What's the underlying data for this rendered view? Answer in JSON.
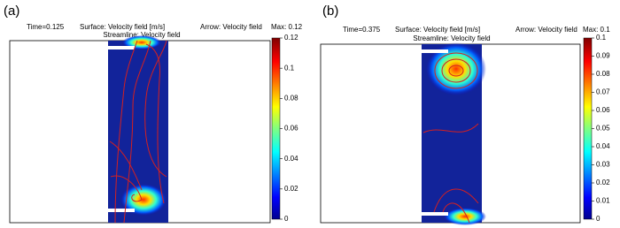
{
  "panels": [
    {
      "label": "(a)",
      "time": "Time=0.125",
      "surface": "Surface: Velocity field [m/s]",
      "arrow": "Arrow: Velocity field",
      "streamline": "Streamline: Velocity field",
      "max": "Max: 0.12",
      "colorbar": {
        "lim": [
          0,
          0.12
        ],
        "ticks": [
          0,
          0.02,
          0.04,
          0.06,
          0.08,
          0.1,
          0.12
        ]
      }
    },
    {
      "label": "(b)",
      "time": "Time=0.375",
      "surface": "Surface: Velocity field [m/s]",
      "arrow": "Arrow: Velocity field",
      "streamline": "Streamline: Velocity field",
      "max": "Max: 0.1",
      "colorbar": {
        "lim": [
          0,
          0.1
        ],
        "ticks": [
          0,
          0.01,
          0.02,
          0.03,
          0.04,
          0.05,
          0.06,
          0.07,
          0.08,
          0.09,
          0.1
        ]
      }
    }
  ]
}
